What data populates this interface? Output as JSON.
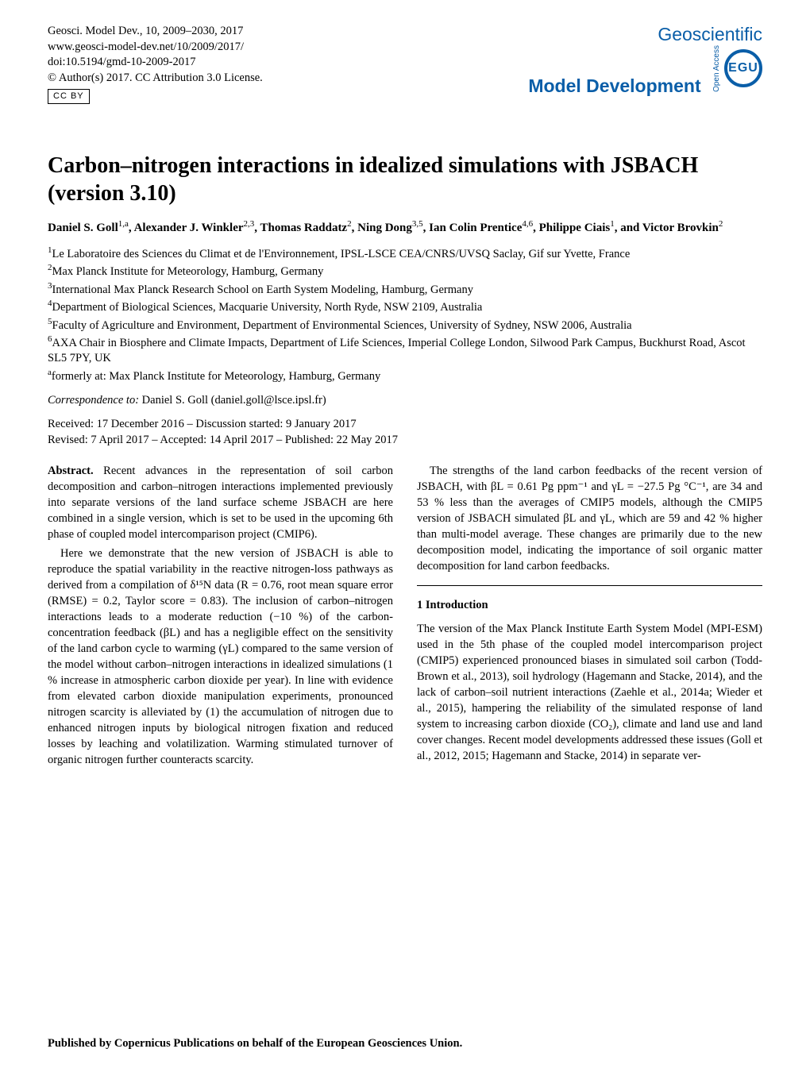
{
  "header": {
    "journal_ref": "Geosci. Model Dev., 10, 2009–2030, 2017",
    "url": "www.geosci-model-dev.net/10/2009/2017/",
    "doi": "doi:10.5194/gmd-10-2009-2017",
    "copyright": "© Author(s) 2017. CC Attribution 3.0 License.",
    "cc_label": "CC  BY",
    "journal_name_1": "Geoscientific",
    "journal_name_2": "Model Development",
    "egu_label": "EGU",
    "open_access": "Open Access"
  },
  "title": "Carbon–nitrogen interactions in idealized simulations with JSBACH (version 3.10)",
  "authors_html": "Daniel S. Goll<sup>1,a</sup>, Alexander J. Winkler<sup>2,3</sup>, Thomas Raddatz<sup>2</sup>, Ning Dong<sup>3,5</sup>, Ian Colin Prentice<sup>4,6</sup>, Philippe Ciais<sup>1</sup>, and Victor Brovkin<sup>2</sup>",
  "affiliations": [
    "<sup>1</sup>Le Laboratoire des Sciences du Climat et de l'Environnement, IPSL-LSCE CEA/CNRS/UVSQ Saclay, Gif sur Yvette, France",
    "<sup>2</sup>Max Planck Institute for Meteorology, Hamburg, Germany",
    "<sup>3</sup>International Max Planck Research School on Earth System Modeling, Hamburg, Germany",
    "<sup>4</sup>Department of Biological Sciences, Macquarie University, North Ryde, NSW 2109, Australia",
    "<sup>5</sup>Faculty of Agriculture and Environment, Department of Environmental Sciences, University of Sydney, NSW 2006, Australia",
    "<sup>6</sup>AXA Chair in Biosphere and Climate Impacts, Department of Life Sciences, Imperial College London, Silwood Park Campus, Buckhurst Road, Ascot SL5 7PY, UK",
    "<sup>a</sup>formerly at: Max Planck Institute for Meteorology, Hamburg, Germany"
  ],
  "correspondence": {
    "label": "Correspondence to:",
    "text": " Daniel S. Goll (daniel.goll@lsce.ipsl.fr)"
  },
  "dates": {
    "line1": "Received: 17 December 2016 – Discussion started: 9 January 2017",
    "line2": "Revised: 7 April 2017 – Accepted: 14 April 2017 – Published: 22 May 2017"
  },
  "abstract": {
    "label": "Abstract.",
    "p1": " Recent advances in the representation of soil carbon decomposition and carbon–nitrogen interactions implemented previously into separate versions of the land surface scheme JSBACH are here combined in a single version, which is set to be used in the upcoming 6th phase of coupled model intercomparison project (CMIP6).",
    "p2": "Here we demonstrate that the new version of JSBACH is able to reproduce the spatial variability in the reactive nitrogen-loss pathways as derived from a compilation of δ¹⁵N data (R = 0.76, root mean square error (RMSE) = 0.2, Taylor score = 0.83). The inclusion of carbon–nitrogen interactions leads to a moderate reduction (−10 %) of the carbon-concentration feedback (βL) and has a negligible effect on the sensitivity of the land carbon cycle to warming (γL) compared to the same version of the model without carbon–nitrogen interactions in idealized simulations (1 % increase in atmospheric carbon dioxide per year). In line with evidence from elevated carbon dioxide manipulation experiments, pronounced nitrogen scarcity is alleviated by (1) the accumulation of nitrogen due to enhanced nitrogen inputs by biological nitrogen fixation and reduced losses by leaching and volatilization. Warming stimulated turnover of organic nitrogen further counteracts scarcity.",
    "p3": "The strengths of the land carbon feedbacks of the recent version of JSBACH, with βL = 0.61 Pg ppm⁻¹ and γL = −27.5 Pg °C⁻¹, are 34 and 53 % less than the averages of CMIP5 models, although the CMIP5 version of JSBACH simulated βL and γL, which are 59 and 42 % higher than multi-model average. These changes are primarily due to the new decomposition model, indicating the importance of soil organic matter decomposition for land carbon feedbacks."
  },
  "section1": {
    "heading": "1   Introduction",
    "p1": "The version of the Max Planck Institute Earth System Model (MPI-ESM) used in the 5th phase of the coupled model intercomparison project (CMIP5) experienced pronounced biases in simulated soil carbon (Todd-Brown et al., 2013), soil hydrology (Hagemann and Stacke, 2014), and the lack of carbon–soil nutrient interactions (Zaehle et al., 2014a; Wieder et al., 2015), hampering the reliability of the simulated response of land system to increasing carbon dioxide (CO₂), climate and land use and land cover changes. Recent model developments addressed these issues (Goll et al., 2012, 2015; Hagemann and Stacke, 2014) in separate ver-"
  },
  "footer": "Published by Copernicus Publications on behalf of the European Geosciences Union.",
  "colors": {
    "brand_blue": "#0a5ea8",
    "text": "#000000",
    "background": "#ffffff"
  }
}
